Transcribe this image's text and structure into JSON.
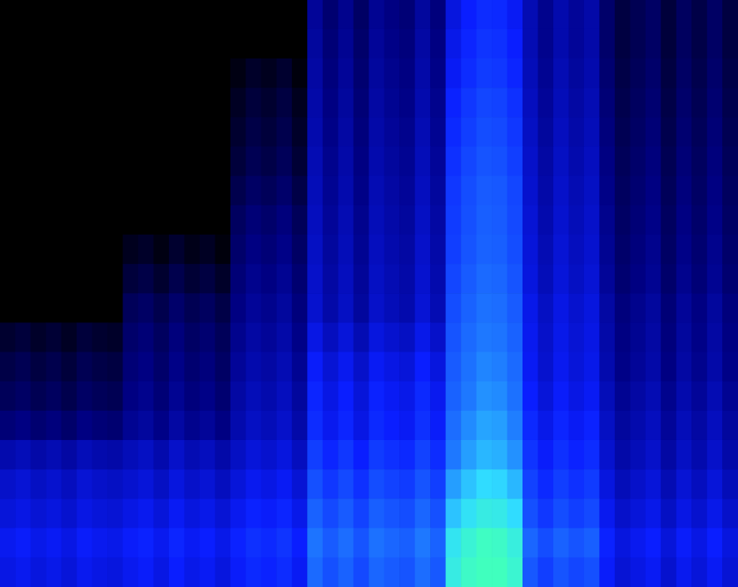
{
  "chart_data": {
    "type": "heatmap",
    "tick_labels": false,
    "zlim": [
      0,
      100
    ],
    "cells": [
      [
        0,
        0,
        0,
        0,
        0,
        0,
        0,
        0,
        0,
        0,
        0,
        0,
        0,
        0,
        0,
        0,
        0,
        0,
        0,
        0,
        26,
        19,
        24,
        17,
        25,
        22,
        20,
        27,
        21,
        39,
        45,
        49,
        48,
        43,
        31,
        24,
        30,
        26,
        29,
        18,
        11,
        14,
        17,
        10,
        16,
        12,
        17,
        11
      ],
      [
        0,
        0,
        0,
        0,
        0,
        0,
        0,
        0,
        0,
        0,
        0,
        0,
        0,
        0,
        0,
        0,
        0,
        0,
        0,
        0,
        27,
        20,
        25,
        18,
        26,
        23,
        21,
        28,
        22,
        41,
        47,
        51,
        50,
        45,
        31,
        24,
        30,
        26,
        29,
        18,
        11,
        14,
        17,
        10,
        16,
        12,
        17,
        11
      ],
      [
        0,
        0,
        0,
        0,
        0,
        0,
        0,
        0,
        0,
        0,
        0,
        0,
        0,
        0,
        0,
        3,
        7,
        5,
        8,
        2,
        28,
        21,
        26,
        19,
        27,
        24,
        22,
        29,
        23,
        43,
        49,
        53,
        52,
        47,
        32,
        25,
        31,
        27,
        30,
        19,
        12,
        15,
        18,
        11,
        17,
        13,
        18,
        12
      ],
      [
        0,
        0,
        0,
        0,
        0,
        0,
        0,
        0,
        0,
        0,
        0,
        0,
        0,
        0,
        0,
        6,
        10,
        8,
        11,
        5,
        29,
        22,
        27,
        20,
        28,
        25,
        23,
        30,
        24,
        46,
        52,
        56,
        55,
        50,
        33,
        26,
        32,
        28,
        31,
        20,
        13,
        16,
        19,
        12,
        18,
        14,
        19,
        13
      ],
      [
        0,
        0,
        0,
        0,
        0,
        0,
        0,
        0,
        0,
        0,
        0,
        0,
        0,
        0,
        0,
        8,
        12,
        10,
        13,
        7,
        30,
        23,
        28,
        21,
        29,
        26,
        24,
        31,
        25,
        48,
        54,
        58,
        57,
        52,
        34,
        27,
        33,
        29,
        32,
        21,
        14,
        17,
        20,
        13,
        19,
        15,
        20,
        14
      ],
      [
        0,
        0,
        0,
        0,
        0,
        0,
        0,
        0,
        0,
        0,
        0,
        0,
        0,
        0,
        0,
        10,
        14,
        12,
        15,
        9,
        31,
        24,
        29,
        22,
        30,
        27,
        25,
        32,
        26,
        50,
        56,
        60,
        59,
        54,
        35,
        28,
        34,
        30,
        33,
        22,
        15,
        18,
        21,
        14,
        20,
        16,
        21,
        15
      ],
      [
        0,
        0,
        0,
        0,
        0,
        0,
        0,
        0,
        0,
        0,
        0,
        0,
        0,
        0,
        0,
        13,
        17,
        15,
        18,
        12,
        32,
        25,
        30,
        23,
        31,
        28,
        26,
        33,
        27,
        52,
        58,
        62,
        61,
        56,
        36,
        29,
        35,
        31,
        34,
        23,
        16,
        19,
        22,
        15,
        21,
        17,
        22,
        16
      ],
      [
        0,
        0,
        0,
        0,
        0,
        0,
        0,
        0,
        0,
        0,
        0,
        0,
        0,
        0,
        0,
        16,
        20,
        18,
        21,
        15,
        33,
        26,
        31,
        24,
        32,
        29,
        27,
        34,
        28,
        53,
        59,
        63,
        62,
        57,
        37,
        30,
        36,
        32,
        35,
        24,
        17,
        20,
        23,
        16,
        22,
        18,
        23,
        17
      ],
      [
        0,
        0,
        0,
        0,
        0,
        0,
        0,
        0,
        5,
        7,
        3,
        8,
        4,
        6,
        2,
        18,
        22,
        20,
        23,
        17,
        34,
        27,
        32,
        25,
        33,
        30,
        28,
        35,
        29,
        54,
        60,
        64,
        63,
        58,
        38,
        31,
        37,
        33,
        36,
        25,
        18,
        21,
        24,
        17,
        23,
        19,
        24,
        18
      ],
      [
        0,
        0,
        0,
        0,
        0,
        0,
        0,
        0,
        10,
        12,
        8,
        13,
        9,
        11,
        7,
        20,
        24,
        22,
        25,
        19,
        35,
        28,
        33,
        26,
        34,
        31,
        29,
        36,
        30,
        56,
        62,
        66,
        65,
        60,
        39,
        32,
        38,
        34,
        37,
        26,
        19,
        22,
        25,
        18,
        24,
        20,
        25,
        19
      ],
      [
        0,
        0,
        0,
        0,
        0,
        0,
        0,
        0,
        15,
        17,
        13,
        18,
        14,
        16,
        12,
        22,
        26,
        24,
        27,
        21,
        36,
        29,
        34,
        27,
        35,
        32,
        30,
        37,
        31,
        58,
        64,
        68,
        67,
        62,
        41,
        34,
        40,
        36,
        39,
        28,
        21,
        24,
        27,
        20,
        26,
        22,
        27,
        21
      ],
      [
        8,
        10,
        7,
        9,
        6,
        10,
        8,
        7,
        18,
        20,
        16,
        21,
        17,
        19,
        15,
        24,
        28,
        26,
        29,
        23,
        40,
        33,
        38,
        31,
        39,
        36,
        34,
        41,
        35,
        60,
        66,
        70,
        69,
        64,
        42,
        35,
        41,
        37,
        40,
        29,
        22,
        25,
        28,
        21,
        27,
        23,
        28,
        22
      ],
      [
        12,
        14,
        11,
        13,
        10,
        14,
        12,
        11,
        20,
        22,
        18,
        23,
        19,
        21,
        17,
        26,
        30,
        28,
        31,
        25,
        44,
        37,
        42,
        35,
        43,
        40,
        38,
        45,
        39,
        62,
        68,
        72,
        71,
        66,
        43,
        36,
        42,
        38,
        41,
        30,
        23,
        26,
        29,
        22,
        28,
        24,
        29,
        23
      ],
      [
        15,
        17,
        14,
        16,
        13,
        17,
        15,
        14,
        22,
        24,
        20,
        25,
        21,
        23,
        19,
        28,
        32,
        30,
        33,
        27,
        47,
        40,
        45,
        38,
        46,
        43,
        41,
        48,
        42,
        64,
        70,
        74,
        73,
        68,
        45,
        38,
        44,
        40,
        43,
        32,
        25,
        28,
        31,
        24,
        30,
        26,
        31,
        25
      ],
      [
        20,
        22,
        19,
        21,
        18,
        22,
        20,
        19,
        25,
        27,
        23,
        28,
        24,
        26,
        22,
        30,
        34,
        32,
        35,
        29,
        49,
        42,
        47,
        40,
        48,
        45,
        43,
        50,
        44,
        67,
        73,
        77,
        76,
        71,
        48,
        41,
        47,
        43,
        46,
        34,
        27,
        30,
        33,
        26,
        32,
        28,
        33,
        27
      ],
      [
        30,
        32,
        29,
        31,
        28,
        32,
        30,
        29,
        32,
        34,
        30,
        35,
        31,
        33,
        29,
        34,
        38,
        36,
        39,
        33,
        54,
        47,
        52,
        45,
        53,
        50,
        48,
        55,
        49,
        70,
        76,
        80,
        79,
        74,
        51,
        44,
        50,
        46,
        49,
        36,
        29,
        32,
        35,
        28,
        34,
        30,
        35,
        29
      ],
      [
        35,
        37,
        34,
        36,
        33,
        37,
        35,
        34,
        36,
        38,
        34,
        39,
        35,
        37,
        33,
        38,
        42,
        40,
        43,
        37,
        59,
        52,
        57,
        50,
        58,
        55,
        53,
        60,
        54,
        76,
        82,
        86,
        85,
        80,
        55,
        48,
        54,
        50,
        53,
        39,
        32,
        35,
        38,
        31,
        37,
        33,
        38,
        32
      ],
      [
        38,
        40,
        37,
        39,
        36,
        40,
        38,
        37,
        40,
        42,
        38,
        43,
        39,
        41,
        37,
        42,
        46,
        44,
        47,
        41,
        64,
        57,
        62,
        55,
        63,
        60,
        58,
        65,
        59,
        82,
        88,
        92,
        91,
        86,
        59,
        52,
        58,
        54,
        57,
        42,
        35,
        38,
        41,
        34,
        40,
        36,
        41,
        35
      ],
      [
        42,
        44,
        41,
        43,
        40,
        44,
        42,
        41,
        44,
        46,
        42,
        47,
        43,
        45,
        41,
        46,
        50,
        48,
        51,
        45,
        69,
        62,
        67,
        60,
        68,
        65,
        63,
        70,
        64,
        89,
        95,
        99,
        98,
        93,
        65,
        58,
        64,
        60,
        63,
        46,
        39,
        42,
        45,
        38,
        44,
        40,
        45,
        39
      ],
      [
        40,
        42,
        39,
        41,
        38,
        42,
        40,
        39,
        42,
        44,
        40,
        45,
        41,
        43,
        39,
        44,
        48,
        46,
        49,
        43,
        66,
        59,
        64,
        57,
        65,
        62,
        60,
        67,
        61,
        92,
        98,
        100,
        100,
        96,
        61,
        54,
        60,
        56,
        59,
        44,
        37,
        40,
        43,
        36,
        42,
        38,
        43,
        37
      ]
    ]
  }
}
